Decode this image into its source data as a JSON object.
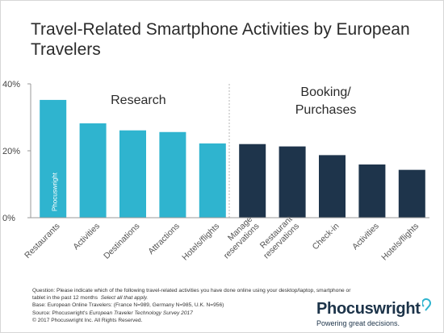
{
  "title": "Travel-Related Smartphone Activities by European Travelers",
  "watermark": "Phocuswright",
  "chart_data": {
    "type": "bar",
    "title": "Travel-Related Smartphone Activities by European Travelers",
    "ylim": [
      0,
      40
    ],
    "yticks": [
      "0%",
      "20%",
      "40%"
    ],
    "grid": false,
    "groups": [
      {
        "name": "Research",
        "color": "#2fb4cf"
      },
      {
        "name": "Booking/\nPurchases",
        "color": "#1e344b"
      }
    ],
    "categories": [
      "Restaurants",
      "Activities",
      "Destinations",
      "Attractions",
      "Hotels/flights",
      "Manage\nreservations",
      "Restaurant\nreservations",
      "Check-in",
      "Activities",
      "Hotels/flights"
    ],
    "values": [
      35.2,
      28.2,
      26.1,
      25.6,
      22.2,
      22.0,
      21.3,
      18.7,
      15.9,
      14.3
    ],
    "group_index": [
      0,
      0,
      0,
      0,
      0,
      1,
      1,
      1,
      1,
      1
    ]
  },
  "footer": {
    "question": "Question: Please indicate which of the following travel-related activities you have done online using your desktop/laptop, smartphone or",
    "question2": "tablet in the past 12 months",
    "select_all": "Select all that apply.",
    "base": "Base: European Online Travelers: (France N=989, Germany N=985, U.K. N=956)",
    "source_prefix": "Source: Phocuswright's",
    "source_title": "European Traveler Technology Survey 2017",
    "copyright": "© 2017 Phocuswright Inc. All Rights Reserved."
  },
  "brand": {
    "name": "Phocuswright",
    "tagline": "Powering great decisions."
  }
}
